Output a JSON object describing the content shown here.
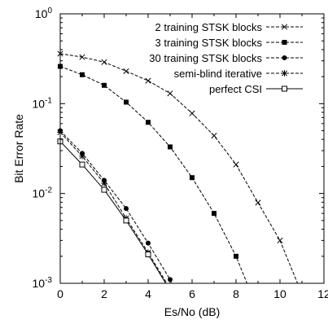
{
  "chart_data": {
    "type": "line",
    "title": "",
    "xlabel": "Es/No (dB)",
    "ylabel": "Bit Error Rate",
    "xlim": [
      0,
      12
    ],
    "ylim": [
      0.001,
      1
    ],
    "yscale": "log",
    "grid": false,
    "legend_position": "top-right",
    "xticks": [
      "0",
      "2",
      "4",
      "6",
      "8",
      "10",
      "12"
    ],
    "yticks": [
      {
        "value": 1,
        "base": "10",
        "exp": "0"
      },
      {
        "value": 0.1,
        "base": "10",
        "exp": "-1"
      },
      {
        "value": 0.01,
        "base": "10",
        "exp": "-2"
      },
      {
        "value": 0.001,
        "base": "10",
        "exp": "-3"
      }
    ],
    "series": [
      {
        "name": "2 training STSK blocks",
        "marker": "x",
        "dashed": true,
        "x": [
          0,
          1,
          2,
          3,
          4,
          5,
          6,
          7,
          8,
          9,
          10,
          10.8
        ],
        "y": [
          0.36,
          0.33,
          0.29,
          0.23,
          0.18,
          0.13,
          0.078,
          0.044,
          0.021,
          0.0079,
          0.003,
          0.001
        ]
      },
      {
        "name": "3 training STSK blocks",
        "marker": "square-filled",
        "dashed": true,
        "x": [
          0,
          1,
          2,
          3,
          4,
          5,
          6,
          7,
          8,
          8.5
        ],
        "y": [
          0.26,
          0.21,
          0.16,
          0.104,
          0.062,
          0.033,
          0.015,
          0.006,
          0.002,
          0.001
        ]
      },
      {
        "name": "30 training STSK blocks",
        "marker": "circle-filled",
        "dashed": true,
        "x": [
          0,
          1,
          2,
          3,
          4,
          5,
          5.1
        ],
        "y": [
          0.05,
          0.028,
          0.014,
          0.0068,
          0.0028,
          0.0011,
          0.001
        ]
      },
      {
        "name": "semi-blind iterative",
        "marker": "star",
        "dashed": true,
        "x": [
          0,
          1,
          2,
          3,
          4,
          4.85
        ],
        "y": [
          0.048,
          0.026,
          0.013,
          0.0053,
          0.0022,
          0.001
        ]
      },
      {
        "name": "perfect CSI",
        "marker": "square-open",
        "dashed": false,
        "x": [
          0,
          1,
          2,
          3,
          4,
          4.8
        ],
        "y": [
          0.038,
          0.021,
          0.011,
          0.005,
          0.0021,
          0.001
        ]
      }
    ]
  }
}
